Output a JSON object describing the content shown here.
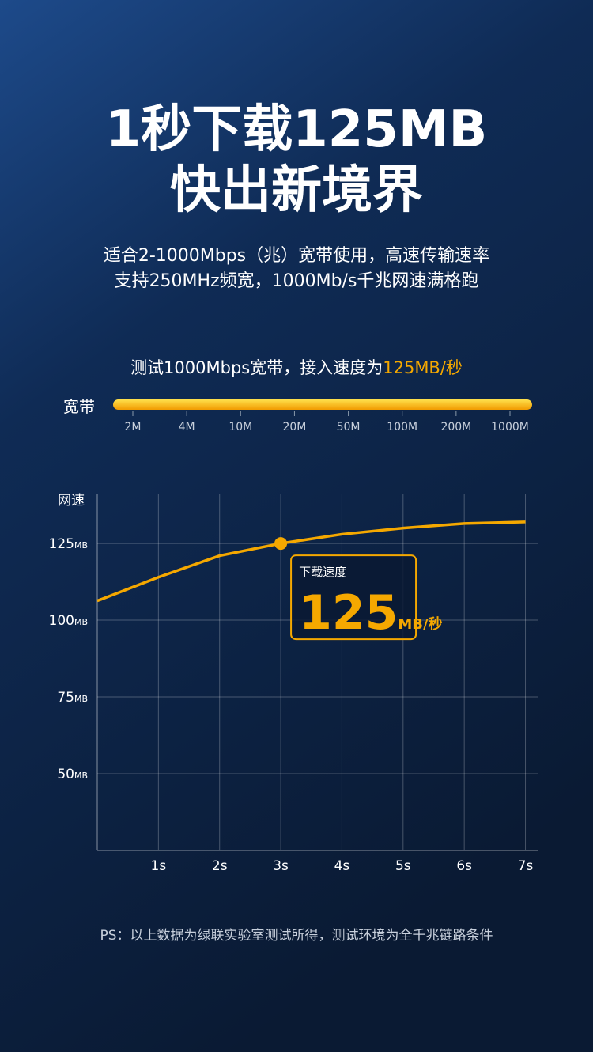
{
  "header": {
    "title_lines": [
      "1秒下载125MB",
      "快出新境界"
    ],
    "subtitle_lines": [
      "适合2-1000Mbps（兆）宽带使用，高速传输速率",
      "支持250MHz频宽，1000Mb/s千兆网速满格跑"
    ]
  },
  "bandwidth": {
    "caption": "测试1000Mbps宽带，接入速度为",
    "caption_highlight": "125MB/秒",
    "label": "宽带",
    "ticks": [
      "2M",
      "4M",
      "10M",
      "20M",
      "50M",
      "100M",
      "200M",
      "1000M"
    ]
  },
  "chart_data": {
    "type": "line",
    "y_label": "网速",
    "y_unit": "MB",
    "x": [
      0,
      1,
      2,
      3,
      4,
      5,
      6,
      7
    ],
    "series": [
      {
        "color": "#f5a800",
        "values": [
          106.3,
          114,
          121,
          125,
          128,
          130,
          131.5,
          132
        ]
      }
    ],
    "xlim": [
      0,
      7.2
    ],
    "xticks": [
      {
        "value": 1,
        "label": "1s"
      },
      {
        "value": 2,
        "label": "2s"
      },
      {
        "value": 3,
        "label": "3s"
      },
      {
        "value": 4,
        "label": "4s"
      },
      {
        "value": 5,
        "label": "5s"
      },
      {
        "value": 6,
        "label": "6s"
      },
      {
        "value": 7,
        "label": "7s"
      }
    ],
    "ylim": [
      25,
      141
    ],
    "yticks": [
      50,
      75,
      100,
      125
    ],
    "grid": true,
    "annotation": {
      "x": 3,
      "label": "下载速度",
      "value": 125,
      "unit": "MB/秒"
    }
  },
  "footnote": "PS：以上数据为绿联实验室测试所得，测试环境为全千兆链路条件"
}
